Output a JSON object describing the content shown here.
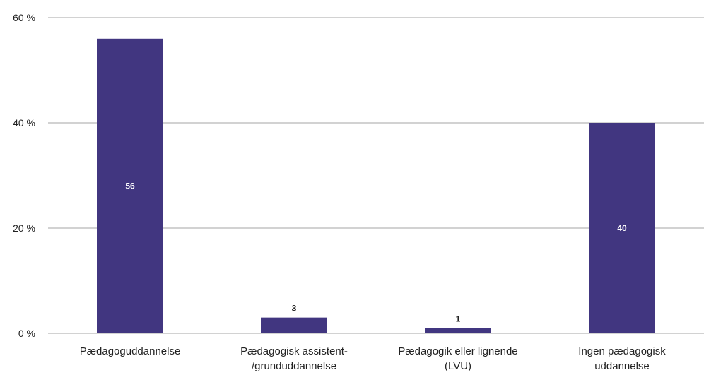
{
  "chart_data": {
    "type": "bar",
    "categories": [
      [
        "Pædagoguddannelse"
      ],
      [
        "Pædagogisk assistent-",
        "/grunduddannelse"
      ],
      [
        "Pædagogik eller lignende",
        "(LVU)"
      ],
      [
        "Ingen pædagogisk",
        "uddannelse"
      ]
    ],
    "values": [
      56,
      3,
      1,
      40
    ],
    "data_labels": [
      "56",
      "3",
      "1",
      "40"
    ],
    "y_ticks": [
      {
        "value": 0,
        "label": "0 %"
      },
      {
        "value": 20,
        "label": "20 %"
      },
      {
        "value": 40,
        "label": "40 %"
      },
      {
        "value": 60,
        "label": "60 %"
      }
    ],
    "ylim": [
      0,
      60
    ],
    "grid": true,
    "legend": "none",
    "colors": {
      "bar": "#413680",
      "grid": "#a6a6a6",
      "label_inside": "#ffffff",
      "label_outside": "#222222"
    }
  }
}
